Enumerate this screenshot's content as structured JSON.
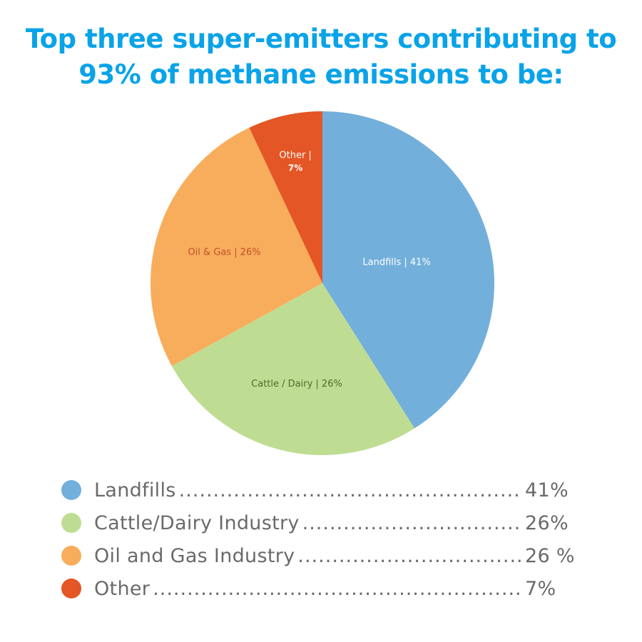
{
  "title": {
    "line1": "Top three super-emitters contributing to",
    "line2": "93% of methane emissions to be:"
  },
  "chart_data": {
    "type": "pie",
    "title": "Top three super-emitters contributing to 93% of methane emissions to be:",
    "slices": [
      {
        "name": "Landfills",
        "value": 41,
        "label": "Landfills | 41%",
        "color": "#73afdb",
        "label_color": "#ffffff"
      },
      {
        "name": "Cattle / Dairy",
        "value": 26,
        "label": "Cattle / Dairy | 26%",
        "color": "#bedd92",
        "label_color": "#4f6b2c"
      },
      {
        "name": "Oil & Gas",
        "value": 26,
        "label": "Oil & Gas | 26%",
        "color": "#f8ad5c",
        "label_color": "#c0502a"
      },
      {
        "name": "Other",
        "value": 7,
        "label_line1": "Other |",
        "label_line2": "7%",
        "color": "#e45625",
        "label_color": "#ffffff"
      }
    ],
    "legend_placement": "bottom"
  },
  "legend": [
    {
      "label": "Landfills",
      "value": "41%",
      "color": "#73afdb"
    },
    {
      "label": "Cattle/Dairy Industry",
      "value": "26%",
      "color": "#bedd92"
    },
    {
      "label": "Oil and Gas Industry",
      "value": "26 %",
      "color": "#f8ad5c"
    },
    {
      "label": "Other",
      "value": "7%",
      "color": "#e45625"
    }
  ]
}
